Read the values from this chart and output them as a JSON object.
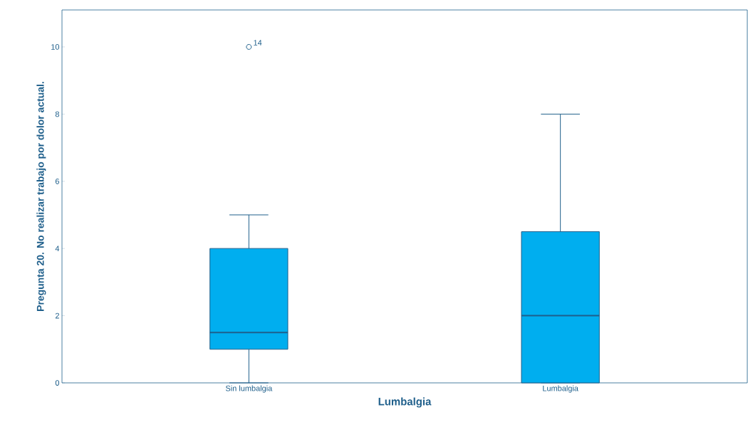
{
  "chart_data": {
    "type": "box",
    "xlabel": "Lumbalgia",
    "ylabel": "Pregunta 20. No realizar trabajo por dolor actual.",
    "categories": [
      "Sin lumbalgia",
      "Lumbalgia"
    ],
    "series": [
      {
        "color": "#00aeef",
        "boxes": [
          {
            "low": 0,
            "q1": 1,
            "median": 1.5,
            "q3": 4,
            "high": 5,
            "outliers": [
              10
            ]
          },
          {
            "low": 0,
            "q1": 0,
            "median": 2,
            "q3": 4.5,
            "high": 8
          }
        ]
      }
    ],
    "ylim": [
      0,
      11.1
    ],
    "yticks": [
      0,
      2,
      4,
      6,
      8,
      10
    ],
    "annotations": [
      "14"
    ]
  }
}
